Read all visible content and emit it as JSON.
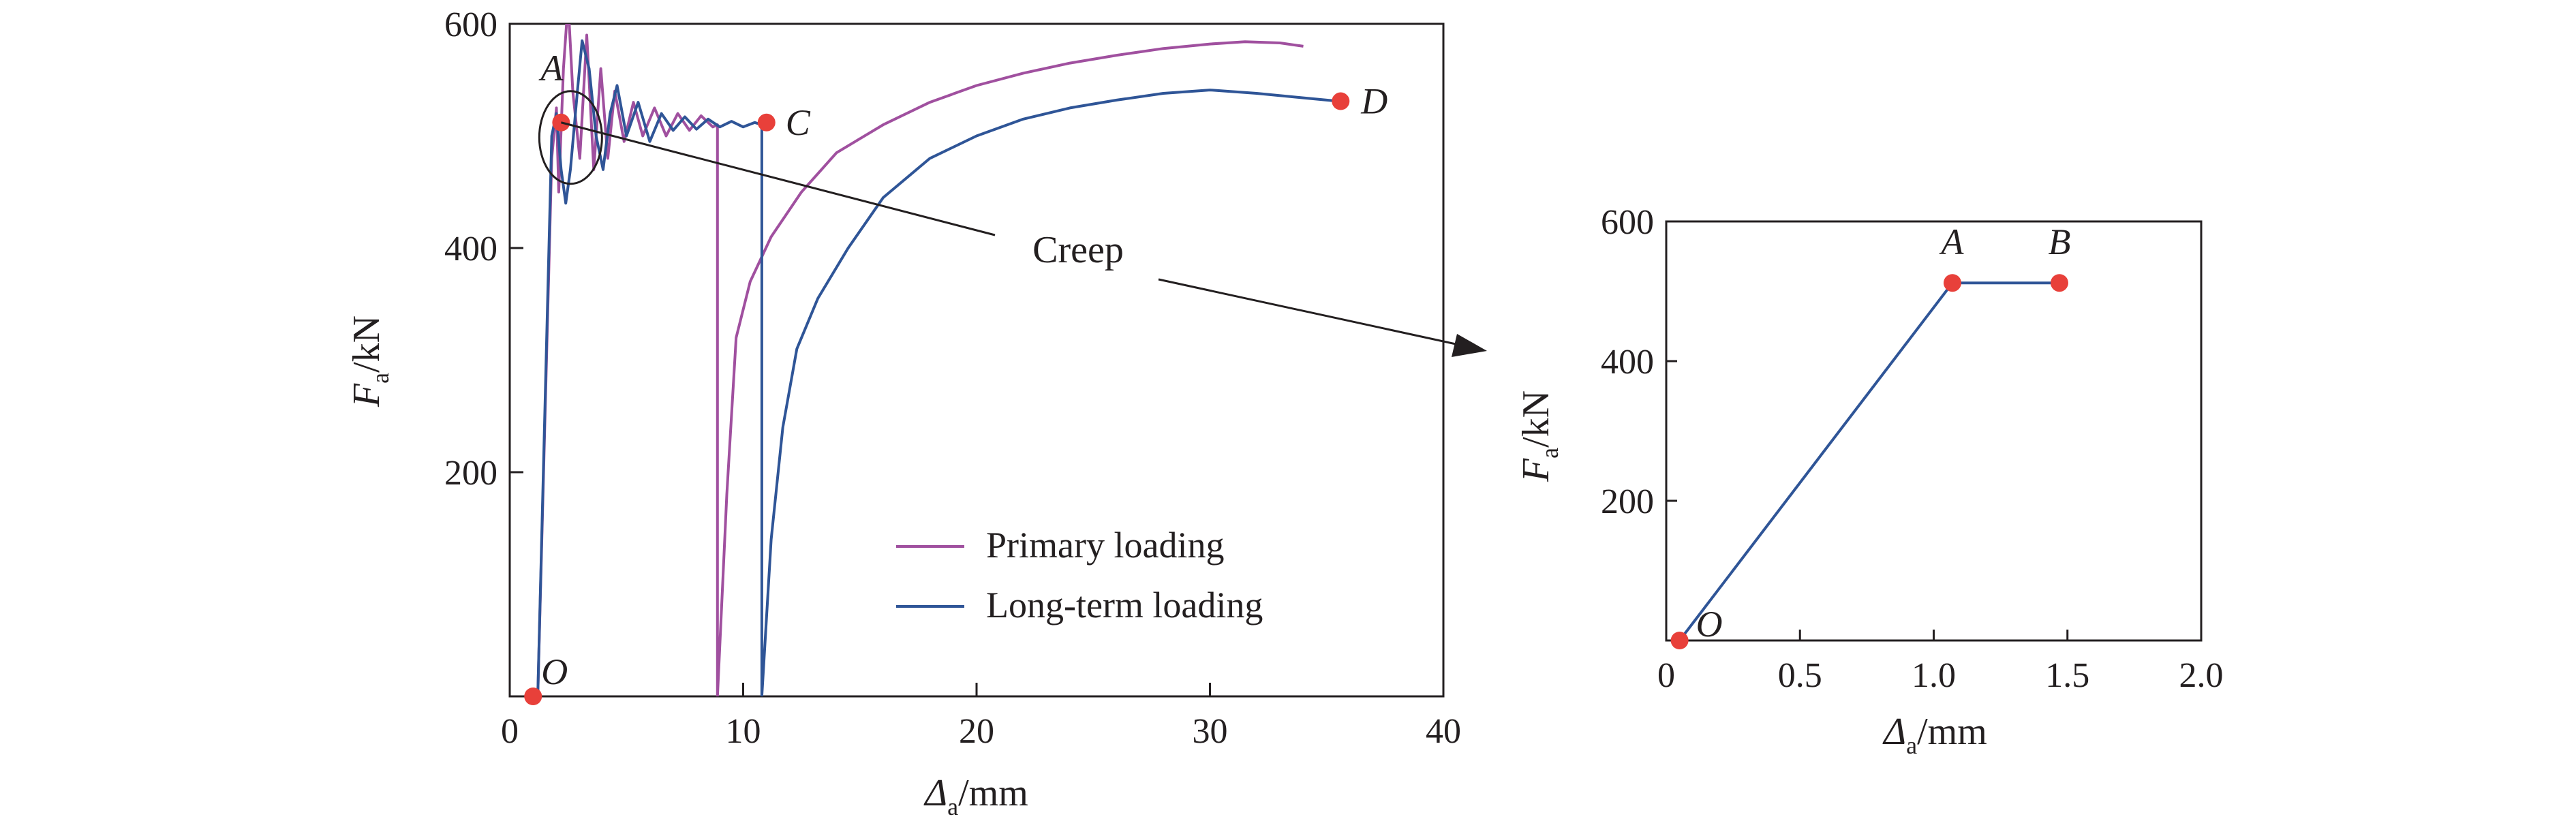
{
  "chart_data": [
    {
      "type": "line",
      "panel": "main",
      "xlabel": {
        "symbol": "Δ",
        "sub": "a",
        "unit": "/mm"
      },
      "ylabel": {
        "symbol": "F",
        "sub": "a",
        "unit": "/kN"
      },
      "xlim": [
        0,
        40
      ],
      "ylim": [
        0,
        600
      ],
      "xticks": [
        0,
        10,
        20,
        30,
        40
      ],
      "yticks": [
        200,
        400,
        600
      ],
      "grid": false,
      "legend_position": "bottom-right",
      "series": [
        {
          "name": "Primary loading",
          "color": "#a0509f",
          "points": [
            [
              1.2,
              0
            ],
            [
              1.8,
              480
            ],
            [
              2.0,
              525
            ],
            [
              2.1,
              450
            ],
            [
              2.3,
              560
            ],
            [
              2.5,
              620
            ],
            [
              2.7,
              540
            ],
            [
              3.0,
              480
            ],
            [
              3.3,
              590
            ],
            [
              3.6,
              470
            ],
            [
              3.9,
              560
            ],
            [
              4.2,
              480
            ],
            [
              4.5,
              540
            ],
            [
              4.9,
              495
            ],
            [
              5.3,
              530
            ],
            [
              5.7,
              500
            ],
            [
              6.2,
              525
            ],
            [
              6.7,
              500
            ],
            [
              7.2,
              520
            ],
            [
              7.7,
              505
            ],
            [
              8.2,
              518
            ],
            [
              8.7,
              508
            ],
            [
              8.9,
              510
            ],
            [
              8.9,
              0
            ],
            [
              9.3,
              180
            ],
            [
              9.7,
              320
            ],
            [
              10.3,
              370
            ],
            [
              11.2,
              410
            ],
            [
              12.5,
              450
            ],
            [
              14,
              485
            ],
            [
              16,
              510
            ],
            [
              18,
              530
            ],
            [
              20,
              545
            ],
            [
              22,
              556
            ],
            [
              24,
              565
            ],
            [
              26,
              572
            ],
            [
              28,
              578
            ],
            [
              30,
              582
            ],
            [
              31.5,
              584
            ],
            [
              33,
              583
            ],
            [
              34,
              580
            ]
          ]
        },
        {
          "name": "Long-term loading",
          "color": "#2f5597",
          "points": [
            [
              1.2,
              0
            ],
            [
              1.8,
              500
            ],
            [
              2.0,
              520
            ],
            [
              2.2,
              470
            ],
            [
              2.4,
              440
            ],
            [
              2.6,
              470
            ],
            [
              2.9,
              540
            ],
            [
              3.1,
              585
            ],
            [
              3.4,
              560
            ],
            [
              3.7,
              500
            ],
            [
              4.0,
              470
            ],
            [
              4.3,
              520
            ],
            [
              4.6,
              545
            ],
            [
              5.0,
              500
            ],
            [
              5.5,
              530
            ],
            [
              6.0,
              495
            ],
            [
              6.5,
              520
            ],
            [
              7.0,
              505
            ],
            [
              7.5,
              517
            ],
            [
              8.0,
              506
            ],
            [
              8.5,
              515
            ],
            [
              9.0,
              508
            ],
            [
              9.5,
              513
            ],
            [
              10.0,
              508
            ],
            [
              10.5,
              512
            ],
            [
              10.8,
              510
            ],
            [
              10.8,
              0
            ],
            [
              11.2,
              140
            ],
            [
              11.7,
              240
            ],
            [
              12.3,
              310
            ],
            [
              13.2,
              355
            ],
            [
              14.5,
              400
            ],
            [
              16,
              445
            ],
            [
              18,
              480
            ],
            [
              20,
              500
            ],
            [
              22,
              515
            ],
            [
              24,
              525
            ],
            [
              26,
              532
            ],
            [
              28,
              538
            ],
            [
              30,
              541
            ],
            [
              32,
              538
            ],
            [
              34,
              534
            ],
            [
              35.5,
              531
            ]
          ]
        }
      ],
      "points": [
        {
          "label": "O",
          "x": 1.0,
          "y": 0
        },
        {
          "label": "A",
          "x": 2.2,
          "y": 512
        },
        {
          "label": "C",
          "x": 11.0,
          "y": 512
        },
        {
          "label": "D",
          "x": 35.6,
          "y": 531
        }
      ],
      "annotation": "Creep"
    },
    {
      "type": "line",
      "panel": "inset",
      "xlabel": {
        "symbol": "Δ",
        "sub": "a",
        "unit": "/mm"
      },
      "ylabel": {
        "symbol": "F",
        "sub": "a",
        "unit": "/kN"
      },
      "xlim": [
        0,
        2.0
      ],
      "ylim": [
        0,
        600
      ],
      "xticks": [
        0,
        0.5,
        1.0,
        1.5,
        2.0
      ],
      "xtick_labels": [
        "0",
        "0.5",
        "1.0",
        "1.5",
        "2.0"
      ],
      "yticks": [
        200,
        400,
        600
      ],
      "grid": false,
      "series": [
        {
          "color": "#2f5597",
          "points": [
            [
              0.05,
              0
            ],
            [
              1.07,
              512
            ],
            [
              1.47,
              512
            ]
          ]
        }
      ],
      "points": [
        {
          "label": "O",
          "x": 0.05,
          "y": 0
        },
        {
          "label": "A",
          "x": 1.07,
          "y": 512
        },
        {
          "label": "B",
          "x": 1.47,
          "y": 512
        }
      ]
    }
  ],
  "colors": {
    "axis": "#231f20",
    "marker": "#e8403a",
    "primary": "#a0509f",
    "long_term": "#2f5597"
  }
}
